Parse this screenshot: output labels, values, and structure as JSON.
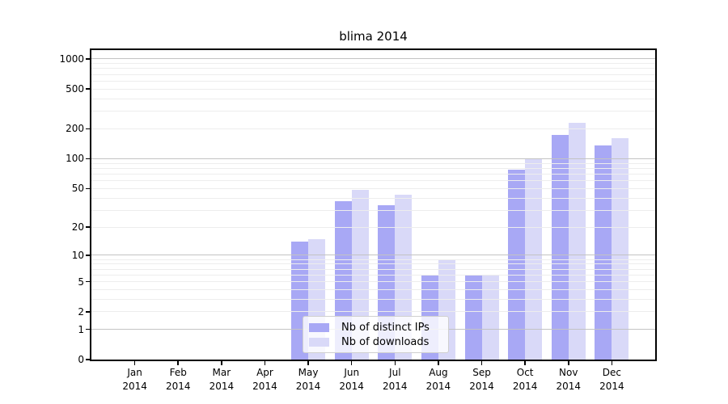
{
  "title": "blima 2014",
  "chart_data": {
    "type": "bar",
    "title": "blima 2014",
    "categories": [
      "Jan",
      "Feb",
      "Mar",
      "Apr",
      "May",
      "Jun",
      "Jul",
      "Aug",
      "Sep",
      "Oct",
      "Nov",
      "Dec"
    ],
    "year_label": "2014",
    "series": [
      {
        "name": "Nb of distinct IPs",
        "color": "#a8a8f5",
        "values": [
          0,
          0,
          0,
          0,
          14,
          37,
          34,
          6,
          6,
          78,
          175,
          135
        ]
      },
      {
        "name": "Nb of downloads",
        "color": "#d9d9f8",
        "values": [
          0,
          0,
          0,
          0,
          15,
          48,
          43,
          9,
          6,
          100,
          230,
          161
        ]
      }
    ],
    "yscale": "log1p",
    "yticks": [
      0,
      1,
      2,
      5,
      10,
      20,
      50,
      100,
      200,
      500,
      1000
    ],
    "ylim": [
      0,
      1226
    ],
    "grid": {
      "major": [
        1,
        10,
        100,
        1000
      ],
      "minor": [
        2,
        3,
        4,
        5,
        6,
        7,
        8,
        9,
        20,
        30,
        40,
        50,
        60,
        70,
        80,
        90,
        200,
        300,
        400,
        500,
        600,
        700,
        800,
        900
      ],
      "major_color": "#c3c3c3",
      "minor_color": "#ededed"
    },
    "legend_position": "lower center",
    "grid_above_bars": true
  },
  "colors": {
    "background": "#ffffff",
    "axis": "#000000",
    "bar_distinct_ips": "#a8a8f5",
    "bar_downloads": "#d9d9f8"
  }
}
